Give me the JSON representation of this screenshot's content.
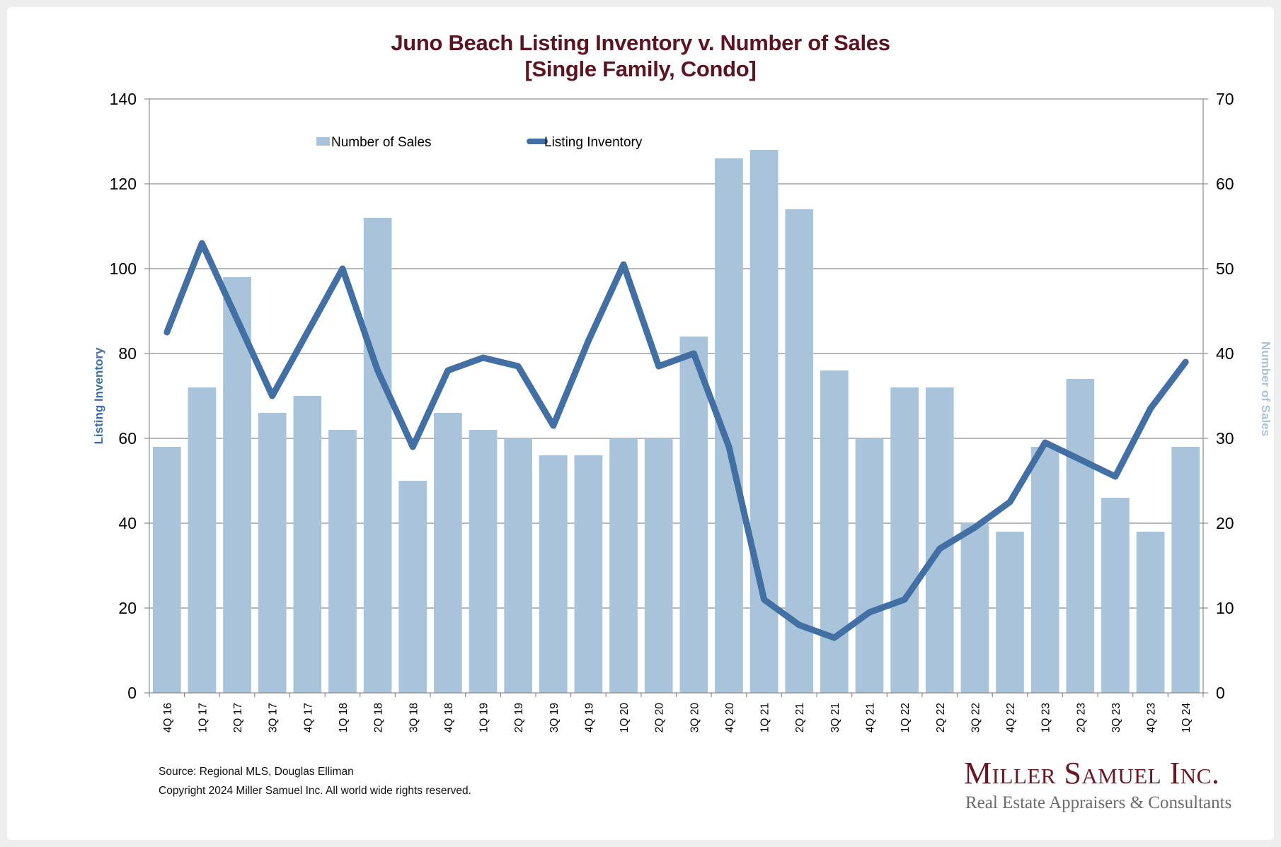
{
  "page": {
    "title_line1": "Juno Beach Listing Inventory v. Number of Sales",
    "title_line2": "[Single Family, Condo]",
    "source": "Source: Regional MLS, Douglas Elliman",
    "copyright": "Copyright 2024 Miller Samuel Inc.  All world wide rights reserved.",
    "logo_name": "Miller Samuel Inc.",
    "logo_tagline": "Real Estate Appraisers & Consultants"
  },
  "colors": {
    "bar": "#a9c4da",
    "line": "#426fa4",
    "title": "#5c1420",
    "left_axis_title": "#426fa4",
    "right_axis_title": "#a9c4da",
    "grid": "#8c8c8c"
  },
  "chart_data": {
    "type": "bar+line",
    "title": "Juno Beach Listing Inventory v. Number of Sales [Single Family, Condo]",
    "categories": [
      "4Q 16",
      "1Q 17",
      "2Q 17",
      "3Q 17",
      "4Q 17",
      "1Q 18",
      "2Q 18",
      "3Q 18",
      "4Q 18",
      "1Q 19",
      "2Q 19",
      "3Q 19",
      "4Q 19",
      "1Q 20",
      "2Q 20",
      "3Q 20",
      "4Q 20",
      "1Q 21",
      "2Q 21",
      "3Q 21",
      "4Q 21",
      "1Q 22",
      "2Q 22",
      "3Q 22",
      "4Q 22",
      "1Q 23",
      "2Q 23",
      "3Q 23",
      "4Q 23",
      "1Q 24"
    ],
    "series": [
      {
        "name": "Number of Sales",
        "type": "bar",
        "axis": "right",
        "values": [
          29,
          36,
          49,
          33,
          35,
          31,
          56,
          25,
          33,
          31,
          30,
          28,
          28,
          30,
          30,
          42,
          63,
          64,
          57,
          38,
          30,
          36,
          36,
          20,
          19,
          29,
          37,
          23,
          19,
          29
        ]
      },
      {
        "name": "Listing Inventory",
        "type": "line",
        "axis": "left",
        "values": [
          85,
          106,
          88,
          70,
          85,
          100,
          76,
          58,
          76,
          79,
          77,
          63,
          83,
          101,
          77,
          80,
          58,
          22,
          16,
          13,
          19,
          22,
          34,
          39,
          45,
          59,
          55,
          51,
          67,
          78
        ]
      }
    ],
    "ylabel": "Listing Inventory",
    "y2label": "Number of Sales",
    "xlabel": "",
    "ylim": [
      0,
      140
    ],
    "y2lim": [
      0,
      70
    ],
    "yticks": [
      0,
      20,
      40,
      60,
      80,
      100,
      120,
      140
    ],
    "y2ticks": [
      0,
      10,
      20,
      30,
      40,
      50,
      60,
      70
    ],
    "grid": true,
    "legend": [
      "Number of Sales",
      "Listing Inventory"
    ],
    "legend_position": "top-left inside plot"
  }
}
